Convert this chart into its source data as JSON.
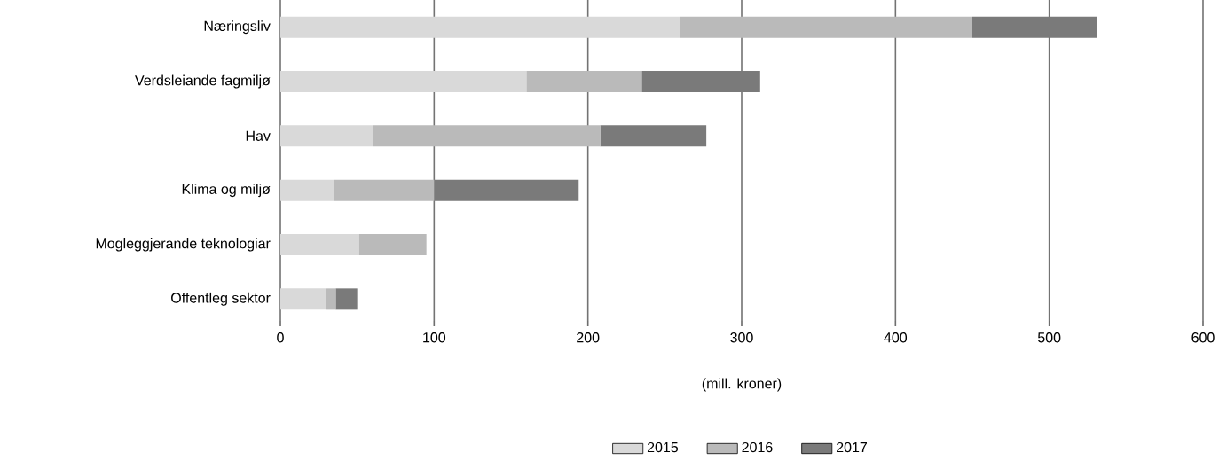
{
  "chart_data": {
    "type": "bar",
    "orientation": "horizontal",
    "stacked": true,
    "xlabel": "(mill. kroner)",
    "categories": [
      "Næringsliv",
      "Verdsleiande fagmiljø",
      "Hav",
      "Klima og miljø",
      "Mogleggjerande teknologiar",
      "Offentleg sektor"
    ],
    "series": [
      {
        "name": "2015",
        "color": "#d9d9d9",
        "values": [
          260,
          160,
          60,
          35,
          51,
          30
        ]
      },
      {
        "name": "2016",
        "color": "#bababa",
        "values": [
          190,
          75,
          148,
          65,
          44,
          6
        ]
      },
      {
        "name": "2017",
        "color": "#7a7a7a",
        "values": [
          81,
          77,
          69,
          94,
          0,
          14
        ]
      }
    ],
    "xlim": [
      0,
      600
    ],
    "xticks": [
      0,
      100,
      200,
      300,
      400,
      500,
      600
    ],
    "grid": "x",
    "legend": "bottom"
  }
}
